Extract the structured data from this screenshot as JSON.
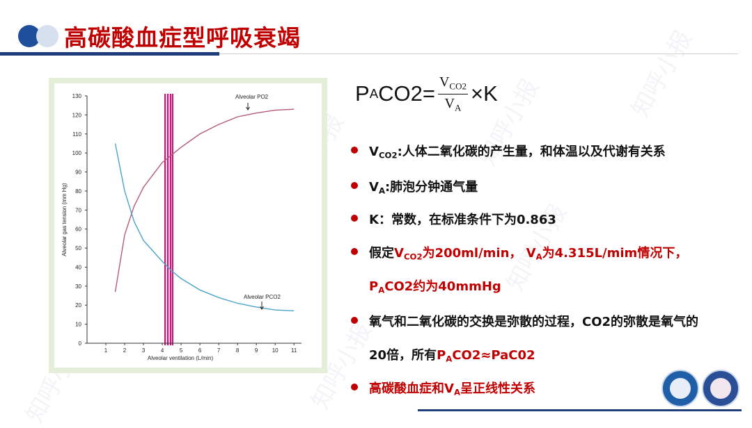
{
  "header": {
    "title": "高碳酸血症型呼吸衰竭"
  },
  "watermark": "知呼小报",
  "chart_data": {
    "type": "line",
    "x_label": "Alveolar ventilation (L/min)",
    "y_label": "Alveolar gas tension (mm Hg)",
    "xlim": [
      0,
      11.4
    ],
    "ylim": [
      0,
      130
    ],
    "xticks": [
      1,
      2,
      3,
      4,
      5,
      6,
      7,
      8,
      9,
      10,
      11
    ],
    "yticks": [
      0,
      10,
      20,
      30,
      40,
      50,
      60,
      70,
      80,
      90,
      100,
      110,
      120,
      130
    ],
    "x": [
      1.5,
      2,
      2.5,
      3,
      4,
      4.5,
      5,
      6,
      7,
      8,
      9,
      10,
      11
    ],
    "series": [
      {
        "name": "Alveolar PO2",
        "color": "#b5577a",
        "values": [
          27,
          57,
          72,
          82,
          95,
          99,
          103,
          110,
          115,
          119,
          121,
          122.5,
          123
        ]
      },
      {
        "name": "Alveolar PCO2",
        "color": "#4aa3c8",
        "values": [
          105,
          80,
          64,
          54,
          43,
          38,
          34,
          28,
          24,
          21,
          19,
          17.5,
          17
        ]
      }
    ]
  },
  "formula": {
    "lhs": [
      {
        "text": "P"
      },
      {
        "text": "A",
        "sub": true
      },
      {
        "text": "CO2="
      }
    ],
    "numerator": [
      {
        "text": "V"
      },
      {
        "text": "CO2",
        "sub": true
      }
    ],
    "denominator": [
      {
        "text": "V"
      },
      {
        "text": "A",
        "sub": true
      }
    ],
    "rhs": "×K"
  },
  "bullets": [
    {
      "lines": [
        [
          {
            "text": "V"
          },
          {
            "text": "CO2",
            "sub": true
          },
          {
            "text": ":人体二氧化碳的产生量，和体温以及代谢有关系"
          }
        ]
      ]
    },
    {
      "lines": [
        [
          {
            "text": "V"
          },
          {
            "text": "A",
            "sub": true
          },
          {
            "text": ":肺泡分钟通气量"
          }
        ]
      ]
    },
    {
      "lines": [
        [
          {
            "text": "K：常数，在标准条件下为0.863"
          }
        ]
      ]
    },
    {
      "lines": [
        [
          {
            "text": "假定"
          },
          {
            "text": "V",
            "color": "#c00000"
          },
          {
            "text": "CO2",
            "sub": true,
            "color": "#c00000"
          },
          {
            "text": "为200ml/min， V",
            "color": "#c00000"
          },
          {
            "text": "A",
            "sub": true,
            "color": "#c00000"
          },
          {
            "text": "为4.315L/mim情况下，",
            "color": "#c00000"
          }
        ],
        [
          {
            "text": "P",
            "color": "#c00000"
          },
          {
            "text": "A",
            "sub": true,
            "color": "#c00000"
          },
          {
            "text": "CO2约为40mmHg",
            "color": "#c00000"
          }
        ]
      ]
    },
    {
      "lines": [
        [
          {
            "text": "氧气和二氧化碳的交换是弥散的过程，CO2的弥散是氧气的"
          }
        ],
        [
          {
            "text": "20倍，所有"
          },
          {
            "text": "P",
            "color": "#c00000"
          },
          {
            "text": "A",
            "sub": true,
            "color": "#c00000"
          },
          {
            "text": "CO2≈PaC02",
            "color": "#c00000"
          }
        ]
      ]
    },
    {
      "lines": [
        [
          {
            "text": "高碳酸血症和V",
            "color": "#c00000"
          },
          {
            "text": "A",
            "sub": true,
            "color": "#c00000"
          },
          {
            "text": "呈正线性关系",
            "color": "#c00000"
          }
        ]
      ]
    }
  ]
}
